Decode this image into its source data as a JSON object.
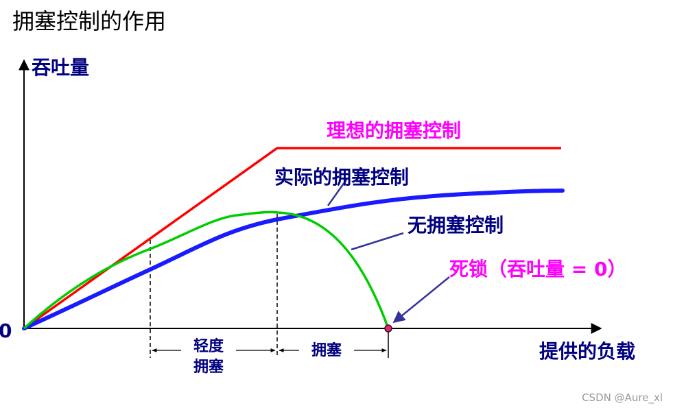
{
  "title": "拥塞控制的作用",
  "axes": {
    "y_label": "吞吐量",
    "x_label": "提供的负载",
    "origin_label": "0"
  },
  "curves": {
    "ideal": "理想的拥塞控制",
    "actual": "实际的拥塞控制",
    "none": "无拥塞控制"
  },
  "deadlock_label": "死锁（吞吐量 = 0）",
  "zones": {
    "light_line1": "轻度",
    "light_line2": "拥塞",
    "congestion": "拥塞"
  },
  "watermark": "CSDN @Aure_xl",
  "colors": {
    "ideal": "#ff0000",
    "actual": "#1a1aff",
    "none": "#00cc00",
    "label_navy": "#000080",
    "label_magenta": "#ff00ff",
    "pointer": "#333399",
    "deadlock_point": "#cc3366"
  }
}
